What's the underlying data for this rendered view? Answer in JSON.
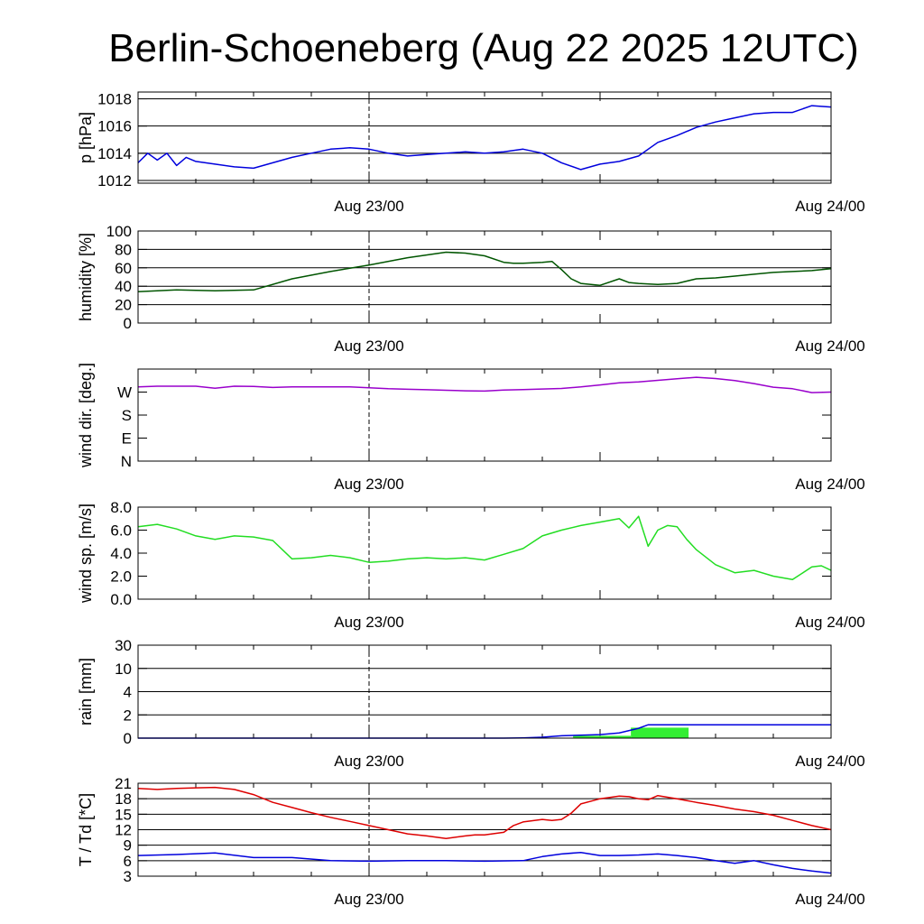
{
  "title": "Berlin-Schoeneberg (Aug 22 2025 12UTC)",
  "x_tick_labels": [
    "Aug 23/00",
    "Aug 24/00"
  ],
  "chart_data": [
    {
      "id": "pressure",
      "type": "line",
      "ylabel": "p [hPa]",
      "ylim": [
        1011.8,
        1018.5
      ],
      "ticks": [
        1012,
        1014,
        1016,
        1018
      ],
      "tick_labels": [
        "1012",
        "1014",
        "1016",
        "1018"
      ],
      "grid": true,
      "color": "#0000dd",
      "series": [
        {
          "x": [
            0,
            0.5,
            1,
            1.5,
            2,
            2.5,
            3,
            4,
            5,
            6,
            7,
            8,
            9,
            10,
            11,
            12,
            13,
            14,
            15,
            16,
            17,
            18,
            19,
            20,
            21,
            22,
            23,
            24,
            25,
            26,
            27,
            28,
            29,
            30,
            31,
            32,
            33,
            34,
            35,
            36
          ],
          "y": [
            1013.3,
            1014,
            1013.5,
            1014,
            1013.1,
            1013.7,
            1013.4,
            1013.2,
            1013.0,
            1012.9,
            1013.3,
            1013.7,
            1014.0,
            1014.3,
            1014.4,
            1014.3,
            1014.0,
            1013.8,
            1013.9,
            1014.0,
            1014.1,
            1014.0,
            1014.1,
            1014.3,
            1014.0,
            1013.3,
            1012.8,
            1013.2,
            1013.4,
            1013.8,
            1014.8,
            1015.3,
            1015.9,
            1016.3,
            1016.6,
            1016.9,
            1017.0,
            1017.0,
            1017.5,
            1017.4
          ]
        }
      ]
    },
    {
      "id": "humidity",
      "type": "line",
      "ylabel": "humidity [%]",
      "ylim": [
        0,
        100
      ],
      "ticks": [
        0,
        20,
        40,
        60,
        80,
        100
      ],
      "tick_labels": [
        "0",
        "20",
        "40",
        "60",
        "80",
        "100"
      ],
      "grid": true,
      "color": "#005500",
      "series": [
        {
          "x": [
            0,
            2,
            4,
            6,
            8,
            10,
            12,
            14,
            16,
            17,
            18,
            19,
            19.5,
            20,
            21,
            21.5,
            22,
            22.5,
            23,
            24,
            25,
            25.5,
            26,
            27,
            28,
            29,
            30,
            31,
            32,
            33,
            34,
            35,
            36
          ],
          "y": [
            34,
            36,
            35,
            36,
            48,
            56,
            63,
            71,
            77,
            76,
            73,
            66,
            65,
            65,
            66,
            67,
            58,
            48,
            43,
            41,
            48,
            44,
            43,
            42,
            43,
            48,
            49,
            51,
            53,
            55,
            56,
            57,
            59
          ]
        }
      ]
    },
    {
      "id": "wind_direction",
      "type": "line",
      "ylabel": "wind dir. [deg.]",
      "ylim": [
        0,
        360
      ],
      "ticks": [
        0,
        90,
        180,
        270
      ],
      "tick_labels": [
        "N",
        "E",
        "S",
        "W"
      ],
      "grid": false,
      "color": "#9900cc",
      "series": [
        {
          "x": [
            0,
            1,
            2,
            3,
            4,
            5,
            6,
            7,
            8,
            9,
            10,
            11,
            12,
            13,
            14,
            15,
            16,
            17,
            18,
            19,
            20,
            21,
            22,
            23,
            24,
            25,
            26,
            27,
            28,
            29,
            30,
            31,
            32,
            33,
            34,
            35,
            36
          ],
          "y": [
            290,
            293,
            293,
            293,
            285,
            293,
            292,
            288,
            290,
            290,
            290,
            290,
            287,
            283,
            281,
            279,
            277,
            275,
            274,
            278,
            280,
            282,
            284,
            290,
            298,
            306,
            310,
            316,
            322,
            328,
            323,
            315,
            303,
            289,
            283,
            268,
            270
          ]
        }
      ]
    },
    {
      "id": "wind_speed",
      "type": "line",
      "ylabel": "wind sp. [m/s]",
      "ylim": [
        0,
        8
      ],
      "ticks": [
        0,
        2,
        4,
        6,
        8
      ],
      "tick_labels": [
        "0.0",
        "2.0",
        "4.0",
        "6.0",
        "8.0"
      ],
      "grid": false,
      "color": "#22dd22",
      "series": [
        {
          "x": [
            0,
            1,
            2,
            3,
            4,
            5,
            6,
            7,
            8,
            9,
            10,
            11,
            12,
            13,
            14,
            15,
            16,
            17,
            18,
            19,
            20,
            21,
            22,
            23,
            24,
            25,
            25.5,
            26,
            26.5,
            27,
            27.5,
            28,
            28.5,
            29,
            30,
            31,
            32,
            33,
            34,
            35,
            35.5,
            36
          ],
          "y": [
            6.3,
            6.5,
            6.1,
            5.5,
            5.2,
            5.5,
            5.4,
            5.1,
            3.5,
            3.6,
            3.8,
            3.6,
            3.2,
            3.3,
            3.5,
            3.6,
            3.5,
            3.6,
            3.4,
            3.9,
            4.4,
            5.5,
            6.0,
            6.4,
            6.7,
            7.0,
            6.2,
            7.2,
            4.6,
            6.0,
            6.4,
            6.3,
            5.2,
            4.3,
            3.0,
            2.3,
            2.5,
            2.0,
            1.7,
            2.8,
            2.9,
            2.5
          ]
        }
      ]
    },
    {
      "id": "rain",
      "type": "bar",
      "ylabel": "rain [mm]",
      "ylim": [
        0,
        30
      ],
      "ticks": [
        0,
        2,
        4,
        10,
        30
      ],
      "tick_labels": [
        "0",
        "2",
        "4",
        "10",
        "30"
      ],
      "grid": true,
      "bar_color": "#33ee33",
      "line_color": "#0000dd",
      "bars": [
        {
          "x0": 22.6,
          "x1": 25.6,
          "value": 0.2
        },
        {
          "x0": 25.6,
          "x1": 28.6,
          "value": 0.9
        }
      ],
      "cumulative": {
        "x": [
          0,
          19,
          20,
          21,
          22,
          23,
          24,
          25,
          26,
          26.5,
          27,
          36
        ],
        "y": [
          0,
          0,
          0.02,
          0.08,
          0.2,
          0.25,
          0.3,
          0.45,
          0.85,
          1.15,
          1.15,
          1.15
        ]
      }
    },
    {
      "id": "temperature",
      "type": "line",
      "ylabel": "T / Td [*C]",
      "ylim": [
        3,
        21
      ],
      "ticks": [
        3,
        6,
        9,
        12,
        15,
        18,
        21
      ],
      "tick_labels": [
        "3",
        "6",
        "9",
        "12",
        "15",
        "18",
        "21"
      ],
      "grid": true,
      "series": [
        {
          "color": "#dd0000",
          "x": [
            0,
            1,
            2,
            3,
            4,
            5,
            6,
            7,
            8,
            9,
            10,
            11,
            12,
            13,
            14,
            15,
            16,
            17,
            17.5,
            18,
            19,
            19.5,
            20,
            21,
            21.5,
            22,
            22.5,
            23,
            24,
            25,
            25.5,
            26,
            26.5,
            27,
            28,
            29,
            30,
            31,
            32,
            33,
            34,
            35,
            36
          ],
          "y": [
            20,
            19.8,
            20,
            20.1,
            20.2,
            19.8,
            18.8,
            17.3,
            16.3,
            15.3,
            14.4,
            13.6,
            12.8,
            12.0,
            11.2,
            10.8,
            10.3,
            10.8,
            11.0,
            11.0,
            11.5,
            12.8,
            13.5,
            14.0,
            13.8,
            14.0,
            15.2,
            17.0,
            18.0,
            18.5,
            18.4,
            18.0,
            17.8,
            18.6,
            18.0,
            17.3,
            16.7,
            16.0,
            15.5,
            14.8,
            13.8,
            12.8,
            12.0
          ]
        },
        {
          "color": "#0000dd",
          "x": [
            0,
            2,
            4,
            6,
            8,
            10,
            12,
            14,
            16,
            18,
            20,
            21,
            22,
            23,
            24,
            25,
            26,
            27,
            28,
            29,
            30,
            31,
            32,
            33,
            34,
            35,
            36
          ],
          "y": [
            7.0,
            7.2,
            7.5,
            6.6,
            6.6,
            6.0,
            5.9,
            6.0,
            6.0,
            5.9,
            6.0,
            6.8,
            7.3,
            7.6,
            7.0,
            7.0,
            7.1,
            7.3,
            7.0,
            6.6,
            6.0,
            5.5,
            6.0,
            5.2,
            4.5,
            4.0,
            3.6
          ]
        }
      ]
    }
  ]
}
